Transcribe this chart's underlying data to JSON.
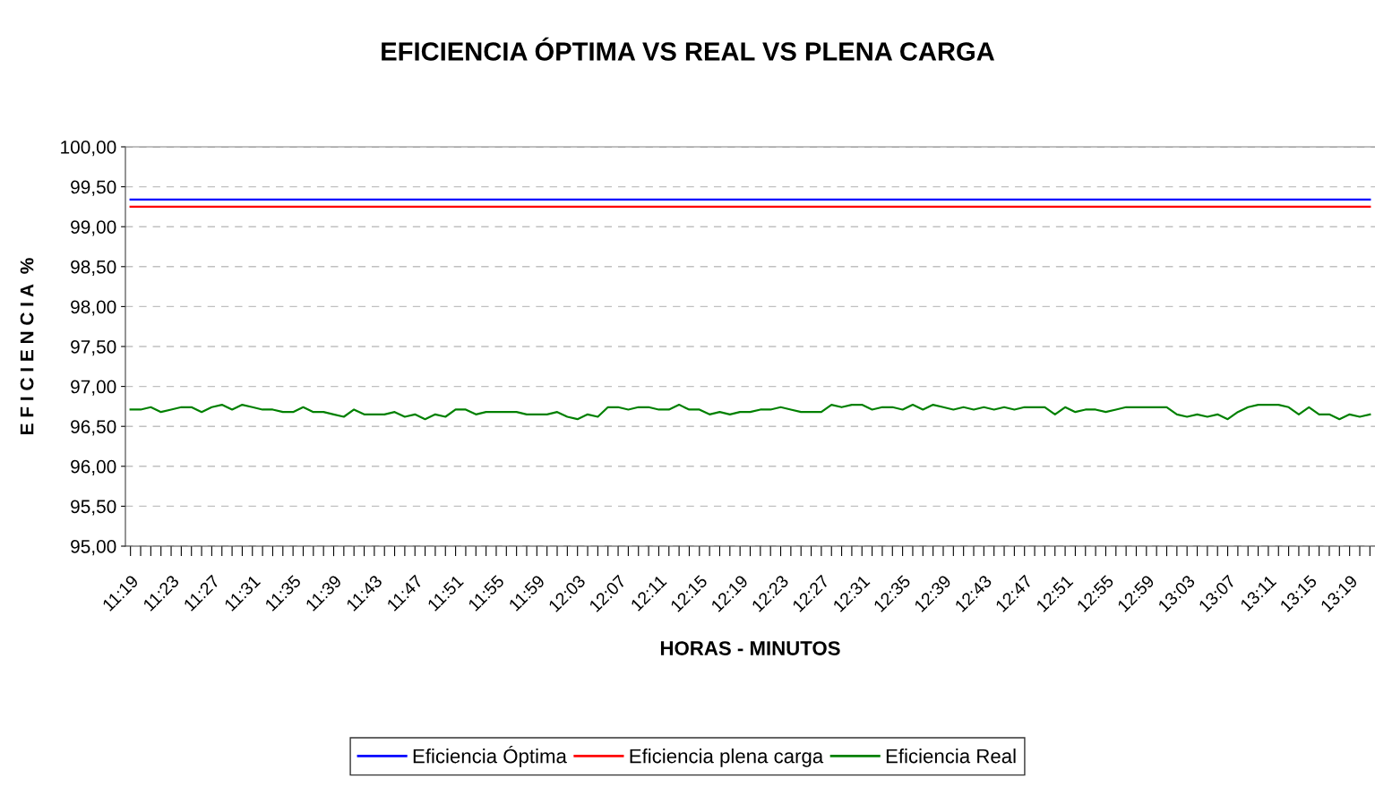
{
  "chart_data": {
    "type": "line",
    "title": "EFICIENCIA ÓPTIMA VS REAL VS PLENA CARGA",
    "xlabel": "HORAS - MINUTOS",
    "ylabel": "E F I C I E N C I A  %",
    "categories": [
      "11:19",
      null,
      null,
      null,
      "11:23",
      null,
      null,
      null,
      "11:27",
      null,
      null,
      null,
      "11:31",
      null,
      null,
      null,
      "11:35",
      null,
      null,
      null,
      "11:39",
      null,
      null,
      null,
      "11:43",
      null,
      null,
      null,
      "11:47",
      null,
      null,
      null,
      "11:51",
      null,
      null,
      null,
      "11:55",
      null,
      null,
      null,
      "11:59",
      null,
      null,
      null,
      "12:03",
      null,
      null,
      null,
      "12:07",
      null,
      null,
      null,
      "12:11",
      null,
      null,
      null,
      "12:15",
      null,
      null,
      null,
      "12:19",
      null,
      null,
      null,
      "12:23",
      null,
      null,
      null,
      "12:27",
      null,
      null,
      null,
      "12:31",
      null,
      null,
      null,
      "12:35",
      null,
      null,
      null,
      "12:39",
      null,
      null,
      null,
      "12:43",
      null,
      null,
      null,
      "12:47",
      null,
      null,
      null,
      "12:51",
      null,
      null,
      null,
      "12:55",
      null,
      null,
      null,
      "12:59",
      null,
      null,
      null,
      "13:03",
      null,
      null,
      null,
      "13:07",
      null,
      null,
      null,
      "13:11",
      null,
      null,
      null,
      "13:15",
      null,
      null,
      null,
      "13:19",
      null,
      null
    ],
    "series": [
      {
        "name": "Eficiencia Óptima",
        "color": "#0000ff",
        "values": [
          99.34,
          99.34,
          99.34,
          99.34,
          99.34,
          99.34,
          99.34,
          99.34,
          99.34,
          99.34,
          99.34,
          99.34,
          99.34,
          99.34,
          99.34,
          99.34,
          99.34,
          99.34,
          99.34,
          99.34,
          99.34,
          99.34,
          99.34,
          99.34,
          99.34,
          99.34,
          99.34,
          99.34,
          99.34,
          99.34,
          99.34,
          99.34,
          99.34,
          99.34,
          99.34,
          99.34,
          99.34,
          99.34,
          99.34,
          99.34,
          99.34,
          99.34,
          99.34,
          99.34,
          99.34,
          99.34,
          99.34,
          99.34,
          99.34,
          99.34,
          99.34,
          99.34,
          99.34,
          99.34,
          99.34,
          99.34,
          99.34,
          99.34,
          99.34,
          99.34,
          99.34,
          99.34,
          99.34,
          99.34,
          99.34,
          99.34,
          99.34,
          99.34,
          99.34,
          99.34,
          99.34,
          99.34,
          99.34,
          99.34,
          99.34,
          99.34,
          99.34,
          99.34,
          99.34,
          99.34,
          99.34,
          99.34,
          99.34,
          99.34,
          99.34,
          99.34,
          99.34,
          99.34,
          99.34,
          99.34,
          99.34,
          99.34,
          99.34,
          99.34,
          99.34,
          99.34,
          99.34,
          99.34,
          99.34,
          99.34,
          99.34,
          99.34,
          99.34,
          99.34,
          99.34,
          99.34,
          99.34,
          99.34,
          99.34,
          99.34,
          99.34,
          99.34,
          99.34,
          99.34,
          99.34,
          99.34,
          99.34,
          99.34,
          99.34,
          99.34,
          99.34,
          99.34,
          99.34
        ]
      },
      {
        "name": "Eficiencia plena carga",
        "color": "#ff0000",
        "values": [
          99.25,
          99.25,
          99.25,
          99.25,
          99.25,
          99.25,
          99.25,
          99.25,
          99.25,
          99.25,
          99.25,
          99.25,
          99.25,
          99.25,
          99.25,
          99.25,
          99.25,
          99.25,
          99.25,
          99.25,
          99.25,
          99.25,
          99.25,
          99.25,
          99.25,
          99.25,
          99.25,
          99.25,
          99.25,
          99.25,
          99.25,
          99.25,
          99.25,
          99.25,
          99.25,
          99.25,
          99.25,
          99.25,
          99.25,
          99.25,
          99.25,
          99.25,
          99.25,
          99.25,
          99.25,
          99.25,
          99.25,
          99.25,
          99.25,
          99.25,
          99.25,
          99.25,
          99.25,
          99.25,
          99.25,
          99.25,
          99.25,
          99.25,
          99.25,
          99.25,
          99.25,
          99.25,
          99.25,
          99.25,
          99.25,
          99.25,
          99.25,
          99.25,
          99.25,
          99.25,
          99.25,
          99.25,
          99.25,
          99.25,
          99.25,
          99.25,
          99.25,
          99.25,
          99.25,
          99.25,
          99.25,
          99.25,
          99.25,
          99.25,
          99.25,
          99.25,
          99.25,
          99.25,
          99.25,
          99.25,
          99.25,
          99.25,
          99.25,
          99.25,
          99.25,
          99.25,
          99.25,
          99.25,
          99.25,
          99.25,
          99.25,
          99.25,
          99.25,
          99.25,
          99.25,
          99.25,
          99.25,
          99.25,
          99.25,
          99.25,
          99.25,
          99.25,
          99.25,
          99.25,
          99.25,
          99.25,
          99.25,
          99.25,
          99.25,
          99.25,
          99.25,
          99.25,
          99.25
        ]
      },
      {
        "name": "Eficiencia Real",
        "color": "#008000",
        "values": [
          96.71,
          96.71,
          96.74,
          96.68,
          96.71,
          96.74,
          96.74,
          96.68,
          96.74,
          96.77,
          96.71,
          96.77,
          96.74,
          96.71,
          96.71,
          96.68,
          96.68,
          96.74,
          96.68,
          96.68,
          96.65,
          96.62,
          96.71,
          96.65,
          96.65,
          96.65,
          96.68,
          96.62,
          96.65,
          96.59,
          96.65,
          96.62,
          96.71,
          96.71,
          96.65,
          96.68,
          96.68,
          96.68,
          96.68,
          96.65,
          96.65,
          96.65,
          96.68,
          96.62,
          96.59,
          96.65,
          96.62,
          96.74,
          96.74,
          96.71,
          96.74,
          96.74,
          96.71,
          96.71,
          96.77,
          96.71,
          96.71,
          96.65,
          96.68,
          96.65,
          96.68,
          96.68,
          96.71,
          96.71,
          96.74,
          96.71,
          96.68,
          96.68,
          96.68,
          96.77,
          96.74,
          96.77,
          96.77,
          96.71,
          96.74,
          96.74,
          96.71,
          96.77,
          96.71,
          96.77,
          96.74,
          96.71,
          96.74,
          96.71,
          96.74,
          96.71,
          96.74,
          96.71,
          96.74,
          96.74,
          96.74,
          96.65,
          96.74,
          96.68,
          96.71,
          96.71,
          96.68,
          96.71,
          96.74,
          96.74,
          96.74,
          96.74,
          96.74,
          96.65,
          96.62,
          96.65,
          96.62,
          96.65,
          96.59,
          96.68,
          96.74,
          96.77,
          96.77,
          96.77,
          96.74,
          96.65,
          96.74,
          96.65,
          96.65,
          96.59,
          96.65,
          96.62,
          96.65
        ]
      }
    ],
    "ylim": [
      95,
      100
    ],
    "yticks": [
      {
        "value": 95,
        "label": "95,00"
      },
      {
        "value": 95.5,
        "label": "95,50"
      },
      {
        "value": 96,
        "label": "96,00"
      },
      {
        "value": 96.5,
        "label": "96,50"
      },
      {
        "value": 97,
        "label": "97,00"
      },
      {
        "value": 97.5,
        "label": "97,50"
      },
      {
        "value": 98,
        "label": "98,00"
      },
      {
        "value": 98.5,
        "label": "98,50"
      },
      {
        "value": 99,
        "label": "99,00"
      },
      {
        "value": 99.5,
        "label": "99,50"
      },
      {
        "value": 100,
        "label": "100,00"
      }
    ],
    "grid": "y",
    "legend": "bottom",
    "marker": "none",
    "line_style": "solid"
  }
}
